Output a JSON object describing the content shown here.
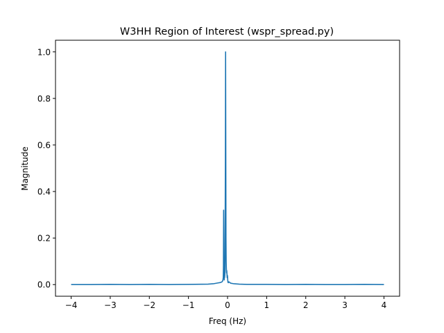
{
  "chart_data": {
    "type": "line",
    "title": "W3HH Region of Interest (wspr_spread.py)",
    "xlabel": "Freq (Hz)",
    "ylabel": "Magnitude",
    "xlim": [
      -4.4,
      4.4
    ],
    "ylim": [
      -0.05,
      1.05
    ],
    "xticks": [
      -4,
      -3,
      -2,
      -1,
      0,
      1,
      2,
      3,
      4
    ],
    "xtick_labels": [
      "−4",
      "−3",
      "−2",
      "−1",
      "0",
      "1",
      "2",
      "3",
      "4"
    ],
    "yticks": [
      0.0,
      0.2,
      0.4,
      0.6,
      0.8,
      1.0
    ],
    "ytick_labels": [
      "0.0",
      "0.2",
      "0.4",
      "0.6",
      "0.8",
      "1.0"
    ],
    "grid": false,
    "line_color": "#1f77b4",
    "series": [
      {
        "x": [
          -4.0,
          -3.5,
          -3.0,
          -2.5,
          -2.0,
          -1.5,
          -1.0,
          -0.5,
          -0.35,
          -0.25,
          -0.18,
          -0.14,
          -0.12,
          -0.11,
          -0.105,
          -0.1,
          -0.095,
          -0.09,
          -0.085,
          -0.08,
          -0.075,
          -0.07,
          -0.065,
          -0.06,
          -0.055,
          -0.05,
          -0.045,
          -0.04,
          -0.035,
          -0.03,
          -0.025,
          -0.02,
          -0.015,
          -0.01,
          -0.005,
          0.0,
          0.005,
          0.01,
          0.02,
          0.03,
          0.05,
          0.08,
          0.15,
          0.3,
          0.5,
          1.0,
          1.5,
          2.0,
          2.5,
          3.0,
          3.5,
          4.0
        ],
        "y": [
          0.0,
          0.0,
          0.001,
          0.0,
          0.001,
          0.0,
          0.001,
          0.002,
          0.004,
          0.007,
          0.009,
          0.012,
          0.018,
          0.03,
          0.08,
          0.32,
          0.2,
          0.05,
          0.02,
          0.035,
          0.03,
          0.04,
          0.06,
          0.3,
          0.55,
          1.0,
          0.6,
          0.2,
          0.1,
          0.07,
          0.05,
          0.06,
          0.045,
          0.03,
          0.04,
          0.035,
          0.02,
          0.01,
          0.008,
          0.012,
          0.01,
          0.006,
          0.004,
          0.002,
          0.001,
          0.001,
          0.0,
          0.001,
          0.0,
          0.0,
          0.001,
          0.0
        ]
      }
    ]
  }
}
